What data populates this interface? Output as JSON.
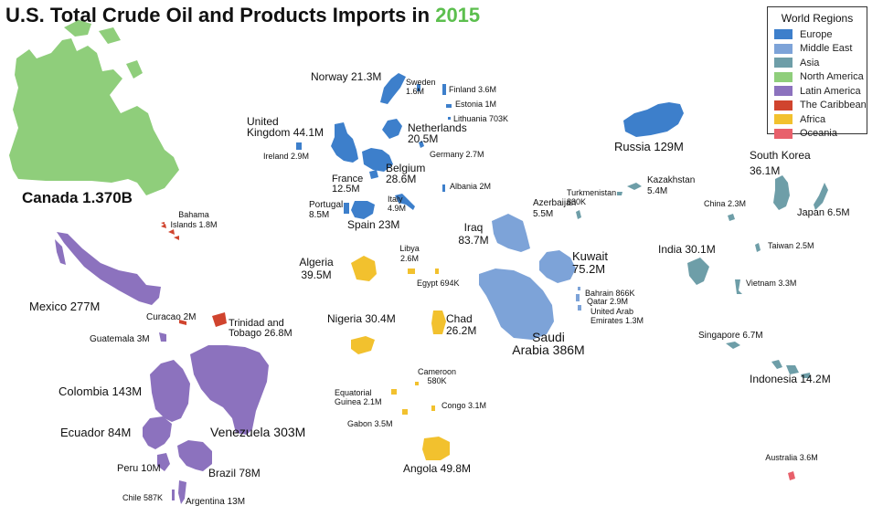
{
  "title": {
    "main": "U.S. Total Crude Oil and Products Imports in",
    "year": "2015"
  },
  "legend": {
    "title": "World Regions",
    "items": [
      {
        "key": "europe",
        "label": "Europe",
        "color": "#3d7fcb"
      },
      {
        "key": "middle_east",
        "label": "Middle East",
        "color": "#7da3d8"
      },
      {
        "key": "asia",
        "label": "Asia",
        "color": "#6e9ea8"
      },
      {
        "key": "north_america",
        "label": "North America",
        "color": "#8fce7b"
      },
      {
        "key": "latin_america",
        "label": "Latin America",
        "color": "#8c72be"
      },
      {
        "key": "caribbean",
        "label": "The Caribbean",
        "color": "#d0442e"
      },
      {
        "key": "africa",
        "label": "Africa",
        "color": "#f2c12e"
      },
      {
        "key": "oceania",
        "label": "Oceania",
        "color": "#e8606b"
      }
    ]
  },
  "countries": [
    {
      "id": "canada",
      "region": "north_america",
      "lines": [
        "Canada 1.370B"
      ]
    },
    {
      "id": "bahama",
      "region": "caribbean",
      "lines": [
        "Bahama",
        "Islands 1.8M"
      ]
    },
    {
      "id": "mexico",
      "region": "latin_america",
      "lines": [
        "Mexico 277M"
      ]
    },
    {
      "id": "curacao",
      "region": "caribbean",
      "lines": [
        "Curacao 2M"
      ]
    },
    {
      "id": "trinidad",
      "region": "caribbean",
      "lines": [
        "Trinidad and",
        "Tobago 26.8M"
      ]
    },
    {
      "id": "guatemala",
      "region": "latin_america",
      "lines": [
        "Guatemala 3M"
      ]
    },
    {
      "id": "colombia",
      "region": "latin_america",
      "lines": [
        "Colombia 143M"
      ]
    },
    {
      "id": "ecuador",
      "region": "latin_america",
      "lines": [
        "Ecuador 84M"
      ]
    },
    {
      "id": "venezuela",
      "region": "latin_america",
      "lines": [
        "Venezuela 303M"
      ]
    },
    {
      "id": "peru",
      "region": "latin_america",
      "lines": [
        "Peru 10M"
      ]
    },
    {
      "id": "brazil",
      "region": "latin_america",
      "lines": [
        "Brazil 78M"
      ]
    },
    {
      "id": "chile",
      "region": "latin_america",
      "lines": [
        "Chile 587K"
      ]
    },
    {
      "id": "argentina",
      "region": "latin_america",
      "lines": [
        "Argentina 13M"
      ]
    },
    {
      "id": "norway",
      "region": "europe",
      "lines": [
        "Norway 21.3M"
      ]
    },
    {
      "id": "sweden",
      "region": "europe",
      "lines": [
        "Sweden",
        "1.6M"
      ]
    },
    {
      "id": "finland",
      "region": "europe",
      "lines": [
        "Finland 3.6M"
      ]
    },
    {
      "id": "estonia",
      "region": "europe",
      "lines": [
        "Estonia 1M"
      ]
    },
    {
      "id": "lithuania",
      "region": "europe",
      "lines": [
        "Lithuania 703K"
      ]
    },
    {
      "id": "uk",
      "region": "europe",
      "lines": [
        "United",
        "Kingdom 44.1M"
      ]
    },
    {
      "id": "netherlands",
      "region": "europe",
      "lines": [
        "Netherlands",
        "20.5M"
      ]
    },
    {
      "id": "ireland",
      "region": "europe",
      "lines": [
        "Ireland 2.9M"
      ]
    },
    {
      "id": "germany",
      "region": "europe",
      "lines": [
        "Germany 2.7M"
      ]
    },
    {
      "id": "belgium",
      "region": "europe",
      "lines": [
        "Belgium",
        "28.6M"
      ]
    },
    {
      "id": "france",
      "region": "europe",
      "lines": [
        "France",
        "12.5M"
      ]
    },
    {
      "id": "albania",
      "region": "europe",
      "lines": [
        "Albania 2M"
      ]
    },
    {
      "id": "italy",
      "region": "europe",
      "lines": [
        "Italy",
        "4.9M"
      ]
    },
    {
      "id": "portugal",
      "region": "europe",
      "lines": [
        "Portugal",
        "8.5M"
      ]
    },
    {
      "id": "spain",
      "region": "europe",
      "lines": [
        "Spain 23M"
      ]
    },
    {
      "id": "russia",
      "region": "europe",
      "lines": [
        "Russia 129M"
      ]
    },
    {
      "id": "kazakhstan",
      "region": "asia",
      "lines": [
        "Kazakhstan",
        "5.4M"
      ]
    },
    {
      "id": "turkmenistan",
      "region": "asia",
      "lines": [
        "Turkmenistan",
        "830K"
      ]
    },
    {
      "id": "azerbaijan",
      "region": "asia",
      "lines": [
        "Azerbaijan",
        "5.5M"
      ]
    },
    {
      "id": "south_korea",
      "region": "asia",
      "lines": [
        "South Korea",
        "36.1M"
      ]
    },
    {
      "id": "china",
      "region": "asia",
      "lines": [
        "China 2.3M"
      ]
    },
    {
      "id": "japan",
      "region": "asia",
      "lines": [
        "Japan 6.5M"
      ]
    },
    {
      "id": "india",
      "region": "asia",
      "lines": [
        "India 30.1M"
      ]
    },
    {
      "id": "taiwan",
      "region": "asia",
      "lines": [
        "Taiwan 2.5M"
      ]
    },
    {
      "id": "vietnam",
      "region": "asia",
      "lines": [
        "Vietnam 3.3M"
      ]
    },
    {
      "id": "singapore",
      "region": "asia",
      "lines": [
        "Singapore 6.7M"
      ]
    },
    {
      "id": "indonesia",
      "region": "asia",
      "lines": [
        "Indonesia 14.2M"
      ]
    },
    {
      "id": "iraq",
      "region": "middle_east",
      "lines": [
        "Iraq",
        "83.7M"
      ]
    },
    {
      "id": "kuwait",
      "region": "middle_east",
      "lines": [
        "Kuwait",
        "75.2M"
      ]
    },
    {
      "id": "bahrain",
      "region": "middle_east",
      "lines": [
        "Bahrain 866K"
      ]
    },
    {
      "id": "qatar",
      "region": "middle_east",
      "lines": [
        "Qatar 2.9M"
      ]
    },
    {
      "id": "uae",
      "region": "middle_east",
      "lines": [
        "United Arab",
        "Emirates 1.3M"
      ]
    },
    {
      "id": "saudi",
      "region": "middle_east",
      "lines": [
        "Saudi",
        "Arabia 386M"
      ]
    },
    {
      "id": "algeria",
      "region": "africa",
      "lines": [
        "Algeria",
        "39.5M"
      ]
    },
    {
      "id": "libya",
      "region": "africa",
      "lines": [
        "Libya",
        "2.6M"
      ]
    },
    {
      "id": "egypt",
      "region": "africa",
      "lines": [
        "Egypt 694K"
      ]
    },
    {
      "id": "nigeria",
      "region": "africa",
      "lines": [
        "Nigeria  30.4M"
      ]
    },
    {
      "id": "chad",
      "region": "africa",
      "lines": [
        "Chad",
        "26.2M"
      ]
    },
    {
      "id": "cameroon",
      "region": "africa",
      "lines": [
        "Cameroon",
        "580K"
      ]
    },
    {
      "id": "eq_guinea",
      "region": "africa",
      "lines": [
        "Equatorial",
        "Guinea 2.1M"
      ]
    },
    {
      "id": "congo",
      "region": "africa",
      "lines": [
        "Congo 3.1M"
      ]
    },
    {
      "id": "gabon",
      "region": "africa",
      "lines": [
        "Gabon 3.5M"
      ]
    },
    {
      "id": "angola",
      "region": "africa",
      "lines": [
        "Angola 49.8M"
      ]
    },
    {
      "id": "australia",
      "region": "oceania",
      "lines": [
        "Australia 3.6M"
      ]
    }
  ]
}
